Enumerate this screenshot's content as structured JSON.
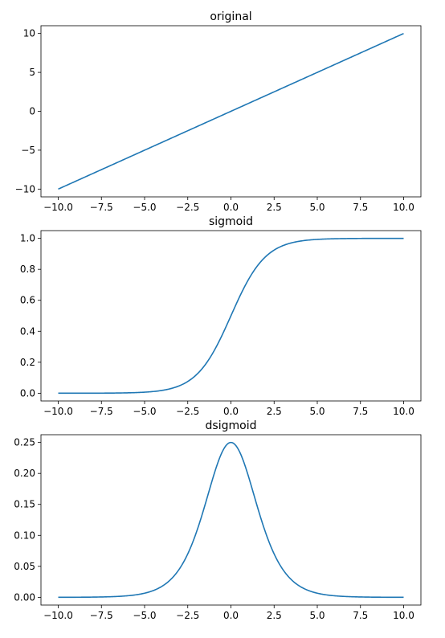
{
  "chart_data": [
    {
      "type": "line",
      "title": "original",
      "function": "y = x",
      "xlim": [
        -10,
        10
      ],
      "ylim": [
        -10,
        10
      ],
      "xticks": [
        -10.0,
        -7.5,
        -5.0,
        -2.5,
        0.0,
        2.5,
        5.0,
        7.5,
        10.0
      ],
      "xtick_labels": [
        "−10.0",
        "−7.5",
        "−5.0",
        "−2.5",
        "0.0",
        "2.5",
        "5.0",
        "7.5",
        "10.0"
      ],
      "yticks": [
        -10,
        -5,
        0,
        5,
        10
      ],
      "ytick_labels": [
        "−10",
        "−5",
        "0",
        "5",
        "10"
      ],
      "x": [
        -10,
        -7.5,
        -5,
        -2.5,
        0,
        2.5,
        5,
        7.5,
        10
      ],
      "y": [
        -10,
        -7.5,
        -5,
        -2.5,
        0,
        2.5,
        5,
        7.5,
        10
      ],
      "color": "#1f77b4"
    },
    {
      "type": "line",
      "title": "sigmoid",
      "function": "y = 1 / (1 + exp(-x))",
      "xlim": [
        -10,
        10
      ],
      "ylim": [
        0,
        1
      ],
      "xticks": [
        -10.0,
        -7.5,
        -5.0,
        -2.5,
        0.0,
        2.5,
        5.0,
        7.5,
        10.0
      ],
      "xtick_labels": [
        "−10.0",
        "−7.5",
        "−5.0",
        "−2.5",
        "0.0",
        "2.5",
        "5.0",
        "7.5",
        "10.0"
      ],
      "yticks": [
        0.0,
        0.2,
        0.4,
        0.6,
        0.8,
        1.0
      ],
      "ytick_labels": [
        "0.0",
        "0.2",
        "0.4",
        "0.6",
        "0.8",
        "1.0"
      ],
      "x": [
        -10,
        -7.5,
        -5,
        -4,
        -3,
        -2,
        -1,
        0,
        1,
        2,
        3,
        4,
        5,
        7.5,
        10
      ],
      "y": [
        0.0,
        0.0006,
        0.0067,
        0.018,
        0.0474,
        0.1192,
        0.2689,
        0.5,
        0.7311,
        0.8808,
        0.9526,
        0.982,
        0.9933,
        0.9994,
        1.0
      ],
      "color": "#1f77b4"
    },
    {
      "type": "line",
      "title": "dsigmoid",
      "function": "y = s(x) * (1 - s(x))",
      "xlim": [
        -10,
        10
      ],
      "ylim": [
        0,
        0.25
      ],
      "xticks": [
        -10.0,
        -7.5,
        -5.0,
        -2.5,
        0.0,
        2.5,
        5.0,
        7.5,
        10.0
      ],
      "xtick_labels": [
        "−10.0",
        "−7.5",
        "−5.0",
        "−2.5",
        "0.0",
        "2.5",
        "5.0",
        "7.5",
        "10.0"
      ],
      "yticks": [
        0.0,
        0.05,
        0.1,
        0.15,
        0.2,
        0.25
      ],
      "ytick_labels": [
        "0.00",
        "0.05",
        "0.10",
        "0.15",
        "0.20",
        "0.25"
      ],
      "x": [
        -10,
        -7.5,
        -5,
        -4,
        -3,
        -2,
        -1,
        0,
        1,
        2,
        3,
        4,
        5,
        7.5,
        10
      ],
      "y": [
        5e-05,
        0.00055,
        0.0066,
        0.0177,
        0.0452,
        0.105,
        0.1966,
        0.25,
        0.1966,
        0.105,
        0.0452,
        0.0177,
        0.0066,
        0.00055,
        5e-05
      ],
      "color": "#1f77b4"
    }
  ]
}
